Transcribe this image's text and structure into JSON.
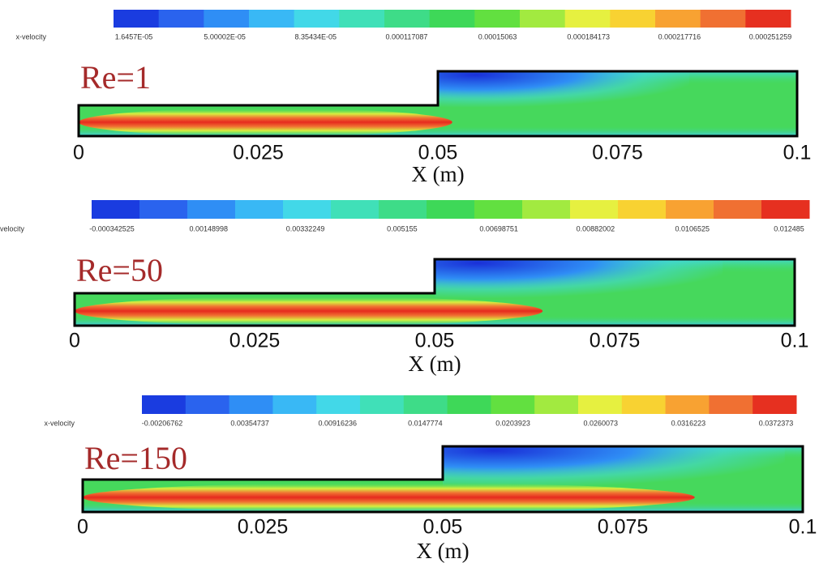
{
  "chart_data": [
    {
      "type": "contour",
      "title": "Re=1",
      "colorbar_label": "x-velocity",
      "colorbar_ticks": [
        {
          "value": 1.6457e-05,
          "label": "1.6457E-05"
        },
        {
          "value": 5.00002e-05,
          "label": "5.00002E-05"
        },
        {
          "value": 8.35434e-05,
          "label": "8.35434E-05"
        },
        0.000117087,
        0.00015063,
        0.000184173,
        0.000217716,
        0.000251259
      ],
      "colormap": [
        "#1a3ce0",
        "#2a63ee",
        "#2f8ef5",
        "#39b8f5",
        "#42d8e8",
        "#40e0b8",
        "#3edc88",
        "#3ed858",
        "#62e040",
        "#a2ea40",
        "#e6f040",
        "#f8d232",
        "#f8a232",
        "#f07032",
        "#e63020"
      ],
      "xlim": [
        0,
        0.1
      ],
      "xticks": [
        0,
        0.025,
        0.05,
        0.075,
        0.1
      ],
      "xlabel": "X (m)"
    },
    {
      "type": "contour",
      "title": "Re=50",
      "colorbar_label": "x-velocity",
      "colorbar_ticks": [
        -0.000342525,
        0.00148998,
        0.00332249,
        0.005155,
        0.00698751,
        0.00882002,
        0.0106525,
        0.012485
      ],
      "colormap": [
        "#1a3ce0",
        "#2a63ee",
        "#2f8ef5",
        "#39b8f5",
        "#42d8e8",
        "#40e0b8",
        "#3edc88",
        "#3ed858",
        "#62e040",
        "#a2ea40",
        "#e6f040",
        "#f8d232",
        "#f8a232",
        "#f07032",
        "#e63020"
      ],
      "xlim": [
        0,
        0.1
      ],
      "xticks": [
        0,
        0.025,
        0.05,
        0.075,
        0.1
      ],
      "xlabel": "X (m)"
    },
    {
      "type": "contour",
      "title": "Re=150",
      "colorbar_label": "x-velocity",
      "colorbar_ticks": [
        -0.00206762,
        0.00354737,
        0.00916236,
        0.0147774,
        0.0203923,
        0.0260073,
        0.0316223,
        0.0372373
      ],
      "colormap": [
        "#1a3ce0",
        "#2a63ee",
        "#2f8ef5",
        "#39b8f5",
        "#42d8e8",
        "#40e0b8",
        "#3edc88",
        "#3ed858",
        "#62e040",
        "#a2ea40",
        "#e6f040",
        "#f8d232",
        "#f8a232",
        "#f07032",
        "#e63020"
      ],
      "xlim": [
        0,
        0.1
      ],
      "xticks": [
        0,
        0.025,
        0.05,
        0.075,
        0.1
      ],
      "xlabel": "X (m)"
    }
  ]
}
